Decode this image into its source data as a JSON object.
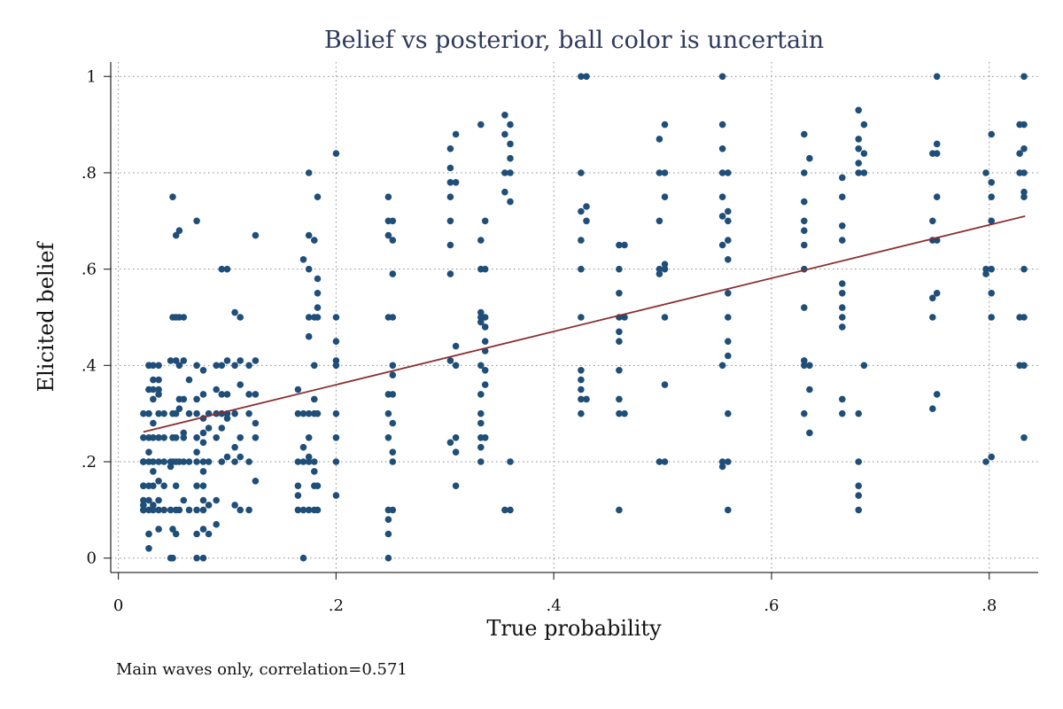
{
  "chart_data": {
    "type": "scatter",
    "title": "Belief vs posterior, ball color is uncertain",
    "xlabel": "True probability",
    "ylabel": "Elicited belief",
    "note": "Main waves only, correlation=0.571",
    "xlim": [
      -0.007,
      0.845
    ],
    "ylim": [
      -0.03,
      1.03
    ],
    "xticks": [
      {
        "value": 0,
        "label": "0"
      },
      {
        "value": 0.2,
        "label": ".2"
      },
      {
        "value": 0.4,
        "label": ".4"
      },
      {
        "value": 0.6,
        "label": ".6"
      },
      {
        "value": 0.8,
        "label": ".8"
      }
    ],
    "yticks": [
      {
        "value": 0,
        "label": "0"
      },
      {
        "value": 0.2,
        "label": ".2"
      },
      {
        "value": 0.4,
        "label": ".4"
      },
      {
        "value": 0.6,
        "label": ".6"
      },
      {
        "value": 0.8,
        "label": ".8"
      },
      {
        "value": 1,
        "label": "1"
      }
    ],
    "grid": true,
    "grid_style": "dotted",
    "marker_color": "#1f4e79",
    "fit_color": "#8b2e2e",
    "fit_line": {
      "x": [
        0.023,
        0.833
      ],
      "y": [
        0.262,
        0.71
      ]
    },
    "groups": [
      {
        "x": 0.023,
        "y": [
          0.2,
          0.1,
          0.11,
          0.15,
          0.2,
          0.3,
          0.12,
          0.1,
          0.2,
          0.11,
          0.25,
          0.2,
          0.1,
          0.15
        ]
      },
      {
        "x": 0.028,
        "y": [
          0.4,
          0.35,
          0.3,
          0.2,
          0.15,
          0.12,
          0.05,
          0.02,
          0.25,
          0.4,
          0.35,
          0.1,
          0.22,
          0.3,
          0.05
        ]
      },
      {
        "x": 0.032,
        "y": [
          0.37,
          0.33,
          0.28,
          0.25,
          0.2,
          0.15,
          0.11,
          0.4,
          0.18,
          0.1,
          0.35
        ]
      },
      {
        "x": 0.037,
        "y": [
          0.4,
          0.35,
          0.3,
          0.25,
          0.2,
          0.16,
          0.12,
          0.1,
          0.06,
          0.37,
          0.34
        ]
      },
      {
        "x": 0.042,
        "y": [
          0.2,
          0.15,
          0.1,
          0.3,
          0.25
        ]
      },
      {
        "x": 0.048,
        "y": [
          0.2,
          0.1,
          0.0,
          0.19,
          0.41
        ]
      },
      {
        "x": 0.05,
        "y": [
          0.75,
          0.5,
          0.2,
          0.25,
          0.06,
          0.0,
          0.3
        ]
      },
      {
        "x": 0.053,
        "y": [
          0.67,
          0.5,
          0.41,
          0.2,
          0.15,
          0.1,
          0.05,
          0.3,
          0.25
        ]
      },
      {
        "x": 0.056,
        "y": [
          0.68,
          0.5,
          0.33,
          0.2,
          0.1,
          0.4,
          0.31
        ]
      },
      {
        "x": 0.06,
        "y": [
          0.5,
          0.41,
          0.33,
          0.25,
          0.2,
          0.12,
          0.26
        ]
      },
      {
        "x": 0.065,
        "y": [
          0.2,
          0.1,
          0.3,
          0.37
        ]
      },
      {
        "x": 0.072,
        "y": [
          0.7,
          0.4,
          0.33,
          0.25,
          0.2,
          0.15,
          0.1,
          0.0,
          0.3,
          0.22,
          0.05
        ]
      },
      {
        "x": 0.078,
        "y": [
          0.39,
          0.34,
          0.29,
          0.24,
          0.2,
          0.15,
          0.1,
          0.06,
          0.0,
          0.18,
          0.26,
          0.12
        ]
      },
      {
        "x": 0.083,
        "y": [
          0.3,
          0.2,
          0.11,
          0.27,
          0.05
        ]
      },
      {
        "x": 0.09,
        "y": [
          0.4,
          0.35,
          0.25,
          0.12,
          0.07,
          0.3
        ]
      },
      {
        "x": 0.095,
        "y": [
          0.6,
          0.4,
          0.3,
          0.2,
          0.34,
          0.27
        ]
      },
      {
        "x": 0.1,
        "y": [
          0.6,
          0.41,
          0.34,
          0.29,
          0.21,
          0.3
        ]
      },
      {
        "x": 0.107,
        "y": [
          0.51,
          0.4,
          0.3,
          0.2,
          0.11,
          0.23
        ]
      },
      {
        "x": 0.112,
        "y": [
          0.5,
          0.41,
          0.36,
          0.25,
          0.1,
          0.21
        ]
      },
      {
        "x": 0.12,
        "y": [
          0.34,
          0.3,
          0.2,
          0.1,
          0.4
        ]
      },
      {
        "x": 0.126,
        "y": [
          0.67,
          0.41,
          0.34,
          0.25,
          0.16,
          0.28
        ]
      },
      {
        "x": 0.165,
        "y": [
          0.35,
          0.3,
          0.2,
          0.15,
          0.1,
          0.13
        ]
      },
      {
        "x": 0.17,
        "y": [
          0.62,
          0.3,
          0.2,
          0.1,
          0.0,
          0.23
        ]
      },
      {
        "x": 0.175,
        "y": [
          0.8,
          0.67,
          0.6,
          0.5,
          0.46,
          0.3,
          0.25,
          0.2,
          0.1,
          0.21
        ]
      },
      {
        "x": 0.18,
        "y": [
          0.66,
          0.5,
          0.4,
          0.33,
          0.3,
          0.2,
          0.15,
          0.1,
          0.18
        ]
      },
      {
        "x": 0.183,
        "y": [
          0.75,
          0.58,
          0.55,
          0.5,
          0.3,
          0.15,
          0.1,
          0.52
        ]
      },
      {
        "x": 0.2,
        "y": [
          0.84,
          0.5,
          0.45,
          0.4,
          0.3,
          0.25,
          0.2,
          0.13,
          0.41
        ]
      },
      {
        "x": 0.248,
        "y": [
          0.75,
          0.7,
          0.67,
          0.5,
          0.3,
          0.25,
          0.1,
          0.05,
          0.0,
          0.34,
          0.08
        ]
      },
      {
        "x": 0.252,
        "y": [
          0.7,
          0.66,
          0.59,
          0.5,
          0.4,
          0.34,
          0.2,
          0.1,
          0.28,
          0.38,
          0.22
        ]
      },
      {
        "x": 0.305,
        "y": [
          0.85,
          0.81,
          0.75,
          0.7,
          0.65,
          0.41,
          0.24,
          0.59,
          0.78
        ]
      },
      {
        "x": 0.31,
        "y": [
          0.88,
          0.78,
          0.44,
          0.4,
          0.25,
          0.22,
          0.15
        ]
      },
      {
        "x": 0.333,
        "y": [
          0.9,
          0.66,
          0.6,
          0.51,
          0.5,
          0.49,
          0.4,
          0.34,
          0.3,
          0.25,
          0.2,
          0.28,
          0.23
        ]
      },
      {
        "x": 0.337,
        "y": [
          0.7,
          0.6,
          0.5,
          0.45,
          0.43,
          0.36,
          0.25,
          0.39,
          0.48
        ]
      },
      {
        "x": 0.355,
        "y": [
          0.92,
          0.8,
          0.76,
          0.1,
          0.88
        ]
      },
      {
        "x": 0.36,
        "y": [
          0.9,
          0.86,
          0.8,
          0.74,
          0.2,
          0.1,
          0.83
        ]
      },
      {
        "x": 0.425,
        "y": [
          1.0,
          0.8,
          0.72,
          0.66,
          0.6,
          0.5,
          0.39,
          0.37,
          0.33,
          0.3,
          0.35
        ]
      },
      {
        "x": 0.43,
        "y": [
          1.0,
          0.73,
          0.7,
          0.33
        ]
      },
      {
        "x": 0.46,
        "y": [
          0.65,
          0.6,
          0.5,
          0.45,
          0.39,
          0.33,
          0.3,
          0.1,
          0.47,
          0.55
        ]
      },
      {
        "x": 0.465,
        "y": [
          0.65,
          0.5,
          0.3
        ]
      },
      {
        "x": 0.497,
        "y": [
          0.87,
          0.8,
          0.7,
          0.6,
          0.2,
          0.59
        ]
      },
      {
        "x": 0.502,
        "y": [
          0.9,
          0.8,
          0.75,
          0.6,
          0.5,
          0.36,
          0.2,
          0.61
        ]
      },
      {
        "x": 0.555,
        "y": [
          0.9,
          0.85,
          0.8,
          0.75,
          0.71,
          0.65,
          0.2,
          0.19,
          1.0,
          0.4
        ]
      },
      {
        "x": 0.56,
        "y": [
          0.8,
          0.7,
          0.66,
          0.62,
          0.55,
          0.5,
          0.42,
          0.3,
          0.2,
          0.1,
          0.45,
          0.72
        ]
      },
      {
        "x": 0.63,
        "y": [
          0.88,
          0.8,
          0.74,
          0.7,
          0.65,
          0.6,
          0.52,
          0.41,
          0.4,
          0.3,
          0.68
        ]
      },
      {
        "x": 0.635,
        "y": [
          0.83,
          0.35,
          0.26,
          0.4
        ]
      },
      {
        "x": 0.665,
        "y": [
          0.79,
          0.75,
          0.69,
          0.66,
          0.57,
          0.55,
          0.5,
          0.48,
          0.3,
          0.33,
          0.52
        ]
      },
      {
        "x": 0.68,
        "y": [
          0.93,
          0.85,
          0.82,
          0.8,
          0.3,
          0.2,
          0.15,
          0.1,
          0.13,
          0.87
        ]
      },
      {
        "x": 0.685,
        "y": [
          0.9,
          0.4,
          0.8,
          0.84
        ]
      },
      {
        "x": 0.748,
        "y": [
          0.84,
          0.7,
          0.66,
          0.54,
          0.5,
          0.31
        ]
      },
      {
        "x": 0.752,
        "y": [
          1.0,
          0.86,
          0.75,
          0.66,
          0.55,
          0.34,
          0.84
        ]
      },
      {
        "x": 0.797,
        "y": [
          0.8,
          0.6,
          0.2,
          0.59
        ]
      },
      {
        "x": 0.802,
        "y": [
          0.88,
          0.75,
          0.7,
          0.6,
          0.55,
          0.5,
          0.21,
          0.78
        ]
      },
      {
        "x": 0.832,
        "y": [
          1.0,
          0.9,
          0.85,
          0.8,
          0.76,
          0.6,
          0.5,
          0.4,
          0.25,
          0.75
        ]
      },
      {
        "x": 0.828,
        "y": [
          0.9,
          0.8,
          0.5,
          0.4,
          0.84
        ]
      }
    ]
  }
}
